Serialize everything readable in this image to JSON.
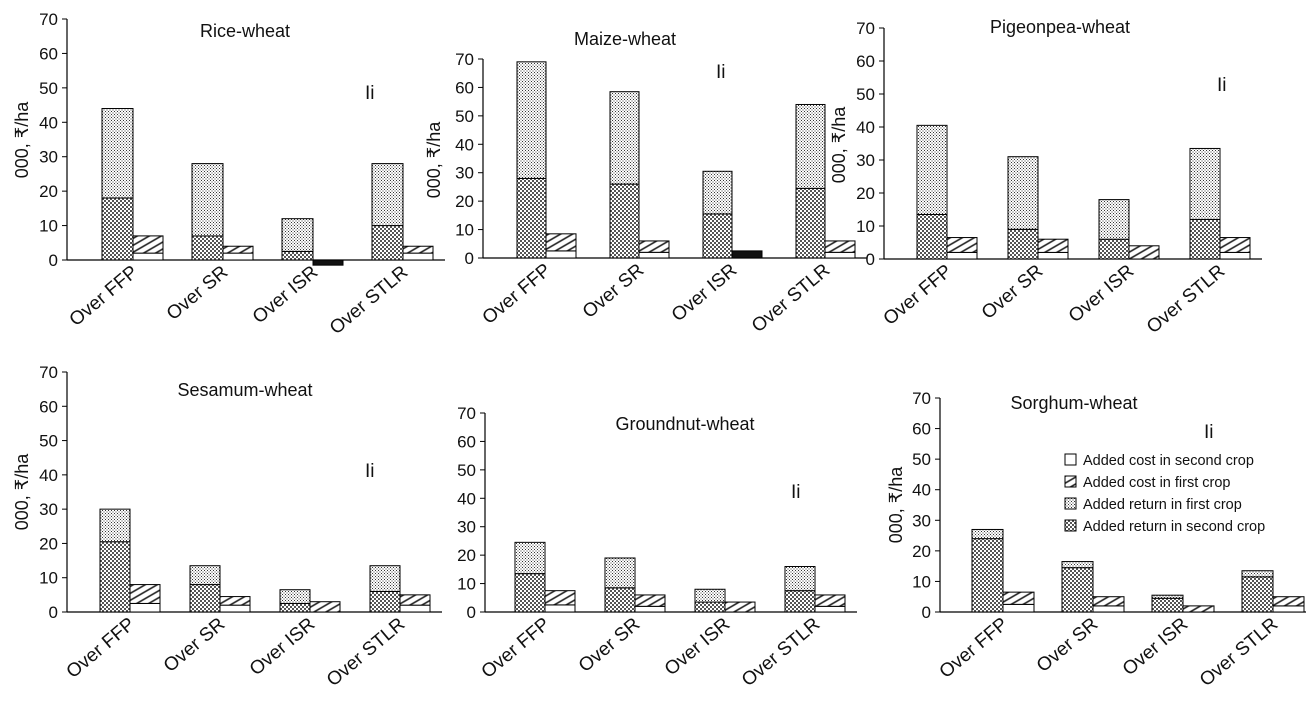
{
  "chart_data": [
    {
      "type": "bar",
      "title": "Rice-wheat",
      "annotation": "Ii",
      "ylabel": "000, ₹/ha",
      "ylim": [
        0,
        70
      ],
      "yticks": [
        0,
        10,
        20,
        30,
        40,
        50,
        60,
        70
      ],
      "categories": [
        "Over FFP",
        "Over SR",
        "Over ISR",
        "Over STLR"
      ],
      "returns": [
        {
          "second": 18,
          "first": 26
        },
        {
          "second": 7,
          "first": 21
        },
        {
          "second": 2.5,
          "first": 9.5
        },
        {
          "second": 10,
          "first": 18
        }
      ],
      "costs": [
        {
          "second": 2,
          "first": 5
        },
        {
          "second": 2,
          "first": 2
        },
        {
          "second": -1.5,
          "first": 0
        },
        {
          "second": 2,
          "first": 2
        }
      ]
    },
    {
      "type": "bar",
      "title": "Maize-wheat",
      "annotation": "Ii",
      "ylabel": "000, ₹/ha",
      "ylim": [
        0,
        70
      ],
      "yticks": [
        0,
        10,
        20,
        30,
        40,
        50,
        60,
        70
      ],
      "categories": [
        "Over FFP",
        "Over SR",
        "Over ISR",
        "Over STLR"
      ],
      "returns": [
        {
          "second": 28,
          "first": 41
        },
        {
          "second": 26,
          "first": 32.5
        },
        {
          "second": 15.5,
          "first": 15
        },
        {
          "second": 24.5,
          "first": 29.5
        }
      ],
      "costs": [
        {
          "second": 2.5,
          "first": 6
        },
        {
          "second": 2,
          "first": 4
        },
        {
          "second": 2.5,
          "first": 0
        },
        {
          "second": 2,
          "first": 4
        }
      ]
    },
    {
      "type": "bar",
      "title": "Pigeonpea-wheat",
      "annotation": "Ii",
      "ylabel": "000, ₹/ha",
      "ylim": [
        0,
        70
      ],
      "yticks": [
        0,
        10,
        20,
        30,
        40,
        50,
        60,
        70
      ],
      "categories": [
        "Over FFP",
        "Over SR",
        "Over ISR",
        "Over STLR"
      ],
      "returns": [
        {
          "second": 13.5,
          "first": 27
        },
        {
          "second": 9,
          "first": 22
        },
        {
          "second": 6,
          "first": 12
        },
        {
          "second": 12,
          "first": 21.5
        }
      ],
      "costs": [
        {
          "second": 2,
          "first": 4.5
        },
        {
          "second": 2,
          "first": 4
        },
        {
          "second": 0,
          "first": 4
        },
        {
          "second": 2,
          "first": 4.5
        }
      ]
    },
    {
      "type": "bar",
      "title": "Sesamum-wheat",
      "annotation": "Ii",
      "ylabel": "000, ₹/ha",
      "ylim": [
        0,
        70
      ],
      "yticks": [
        0,
        10,
        20,
        30,
        40,
        50,
        60,
        70
      ],
      "categories": [
        "Over FFP",
        "Over SR",
        "Over ISR",
        "Over STLR"
      ],
      "returns": [
        {
          "second": 20.5,
          "first": 9.5
        },
        {
          "second": 8,
          "first": 5.5
        },
        {
          "second": 2.5,
          "first": 4
        },
        {
          "second": 6,
          "first": 7.5
        }
      ],
      "costs": [
        {
          "second": 2.5,
          "first": 5.5
        },
        {
          "second": 2,
          "first": 2.5
        },
        {
          "second": 0,
          "first": 3
        },
        {
          "second": 2,
          "first": 3
        }
      ]
    },
    {
      "type": "bar",
      "title": "Groundnut-wheat",
      "annotation": "Ii",
      "ylabel": "",
      "ylim": [
        0,
        70
      ],
      "yticks": [
        0,
        10,
        20,
        30,
        40,
        50,
        60,
        70
      ],
      "categories": [
        "Over FFP",
        "Over SR",
        "Over ISR",
        "Over STLR"
      ],
      "returns": [
        {
          "second": 13.5,
          "first": 11
        },
        {
          "second": 8.5,
          "first": 10.5
        },
        {
          "second": 3.5,
          "first": 4.5
        },
        {
          "second": 7.5,
          "first": 8.5
        }
      ],
      "costs": [
        {
          "second": 2.5,
          "first": 5
        },
        {
          "second": 2,
          "first": 4
        },
        {
          "second": 0,
          "first": 3.5
        },
        {
          "second": 2,
          "first": 4
        }
      ]
    },
    {
      "type": "bar",
      "title": "Sorghum-wheat",
      "annotation": "Ii",
      "ylabel": "000, ₹/ha",
      "ylim": [
        0,
        70
      ],
      "yticks": [
        0,
        10,
        20,
        30,
        40,
        50,
        60,
        70
      ],
      "categories": [
        "Over FFP",
        "Over SR",
        "Over ISR",
        "Over STLR"
      ],
      "returns": [
        {
          "second": 24,
          "first": 3
        },
        {
          "second": 14.5,
          "first": 2
        },
        {
          "second": 4.5,
          "first": 1
        },
        {
          "second": 11.5,
          "first": 2
        }
      ],
      "costs": [
        {
          "second": 2.5,
          "first": 4
        },
        {
          "second": 2,
          "first": 3
        },
        {
          "second": 0,
          "first": 2
        },
        {
          "second": 2,
          "first": 3
        }
      ],
      "legend": {
        "position": "right",
        "entries": [
          {
            "key": "cost_second",
            "label": "Added cost in second crop"
          },
          {
            "key": "cost_first",
            "label": "Added cost in first crop"
          },
          {
            "key": "return_first",
            "label": "Added return in first crop"
          },
          {
            "key": "return_second",
            "label": "Added return in second crop"
          }
        ]
      }
    }
  ]
}
